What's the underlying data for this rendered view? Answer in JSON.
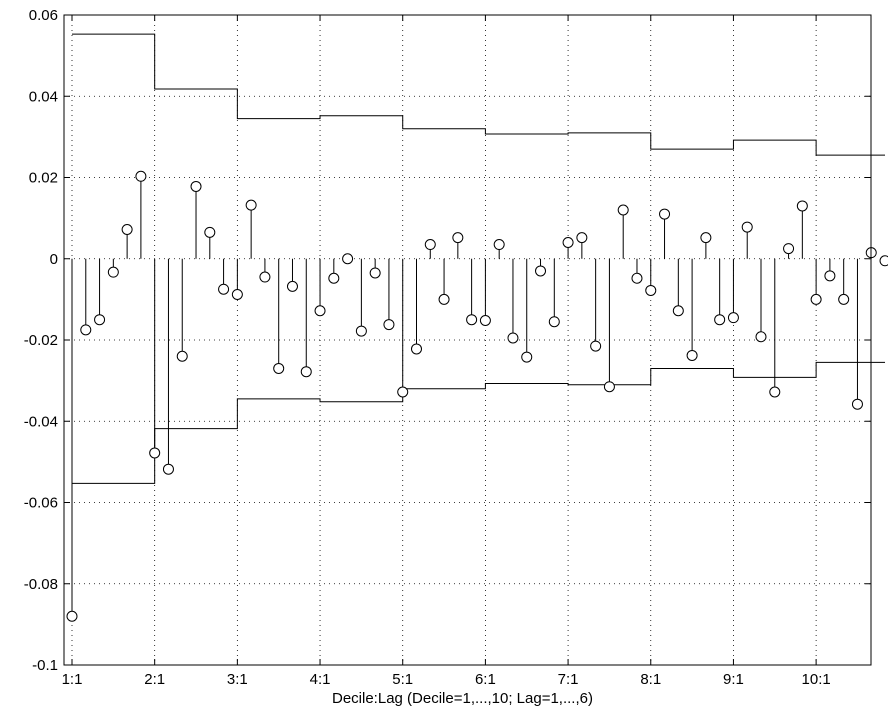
{
  "chart_data": {
    "type": "stem",
    "title": "",
    "xlabel": "Decile:Lag (Decile=1,...,10; Lag=1,...,6)",
    "ylabel": "",
    "ylim": [
      -0.1,
      0.06
    ],
    "grid": true,
    "yticks": [
      -0.1,
      -0.08,
      -0.06,
      -0.04,
      -0.02,
      0,
      0.02,
      0.04,
      0.06
    ],
    "ytick_labels": [
      "-0.1",
      "-0.08",
      "-0.06",
      "-0.04",
      "-0.02",
      "0",
      "0.02",
      "0.04",
      "0.06"
    ],
    "xticks": [
      1,
      7,
      13,
      19,
      25,
      31,
      37,
      43,
      49,
      55
    ],
    "xtick_labels": [
      "1:1",
      "2:1",
      "3:1",
      "4:1",
      "5:1",
      "6:1",
      "7:1",
      "8:1",
      "9:1",
      "10:1"
    ],
    "xlim": [
      0.5,
      61.5
    ],
    "stems": [
      -0.088,
      -0.0175,
      -0.015,
      -0.0033,
      0.0072,
      0.0203,
      -0.0478,
      -0.0518,
      -0.024,
      0.0178,
      0.0065,
      -0.0075,
      -0.0088,
      0.0132,
      -0.0045,
      -0.027,
      -0.0068,
      -0.0278,
      -0.0128,
      -0.0048,
      0.0,
      -0.0178,
      -0.0035,
      -0.0162,
      -0.0328,
      -0.0222,
      0.0035,
      -0.01,
      0.0052,
      -0.015,
      -0.0152,
      0.0035,
      -0.0195,
      -0.0242,
      -0.003,
      -0.0155,
      0.004,
      0.0052,
      -0.0215,
      -0.0315,
      0.012,
      -0.0048,
      -0.0078,
      0.011,
      -0.0128,
      -0.0238,
      0.0052,
      -0.015,
      -0.0145,
      0.0078,
      -0.0192,
      -0.0328,
      0.0025,
      0.013,
      -0.01,
      -0.0042,
      -0.01,
      -0.0358,
      0.0015,
      -0.0005
    ],
    "bounds": [
      0.0553,
      0.0418,
      0.0345,
      0.0352,
      0.032,
      0.0307,
      0.031,
      0.027,
      0.0292,
      0.0255
    ]
  }
}
